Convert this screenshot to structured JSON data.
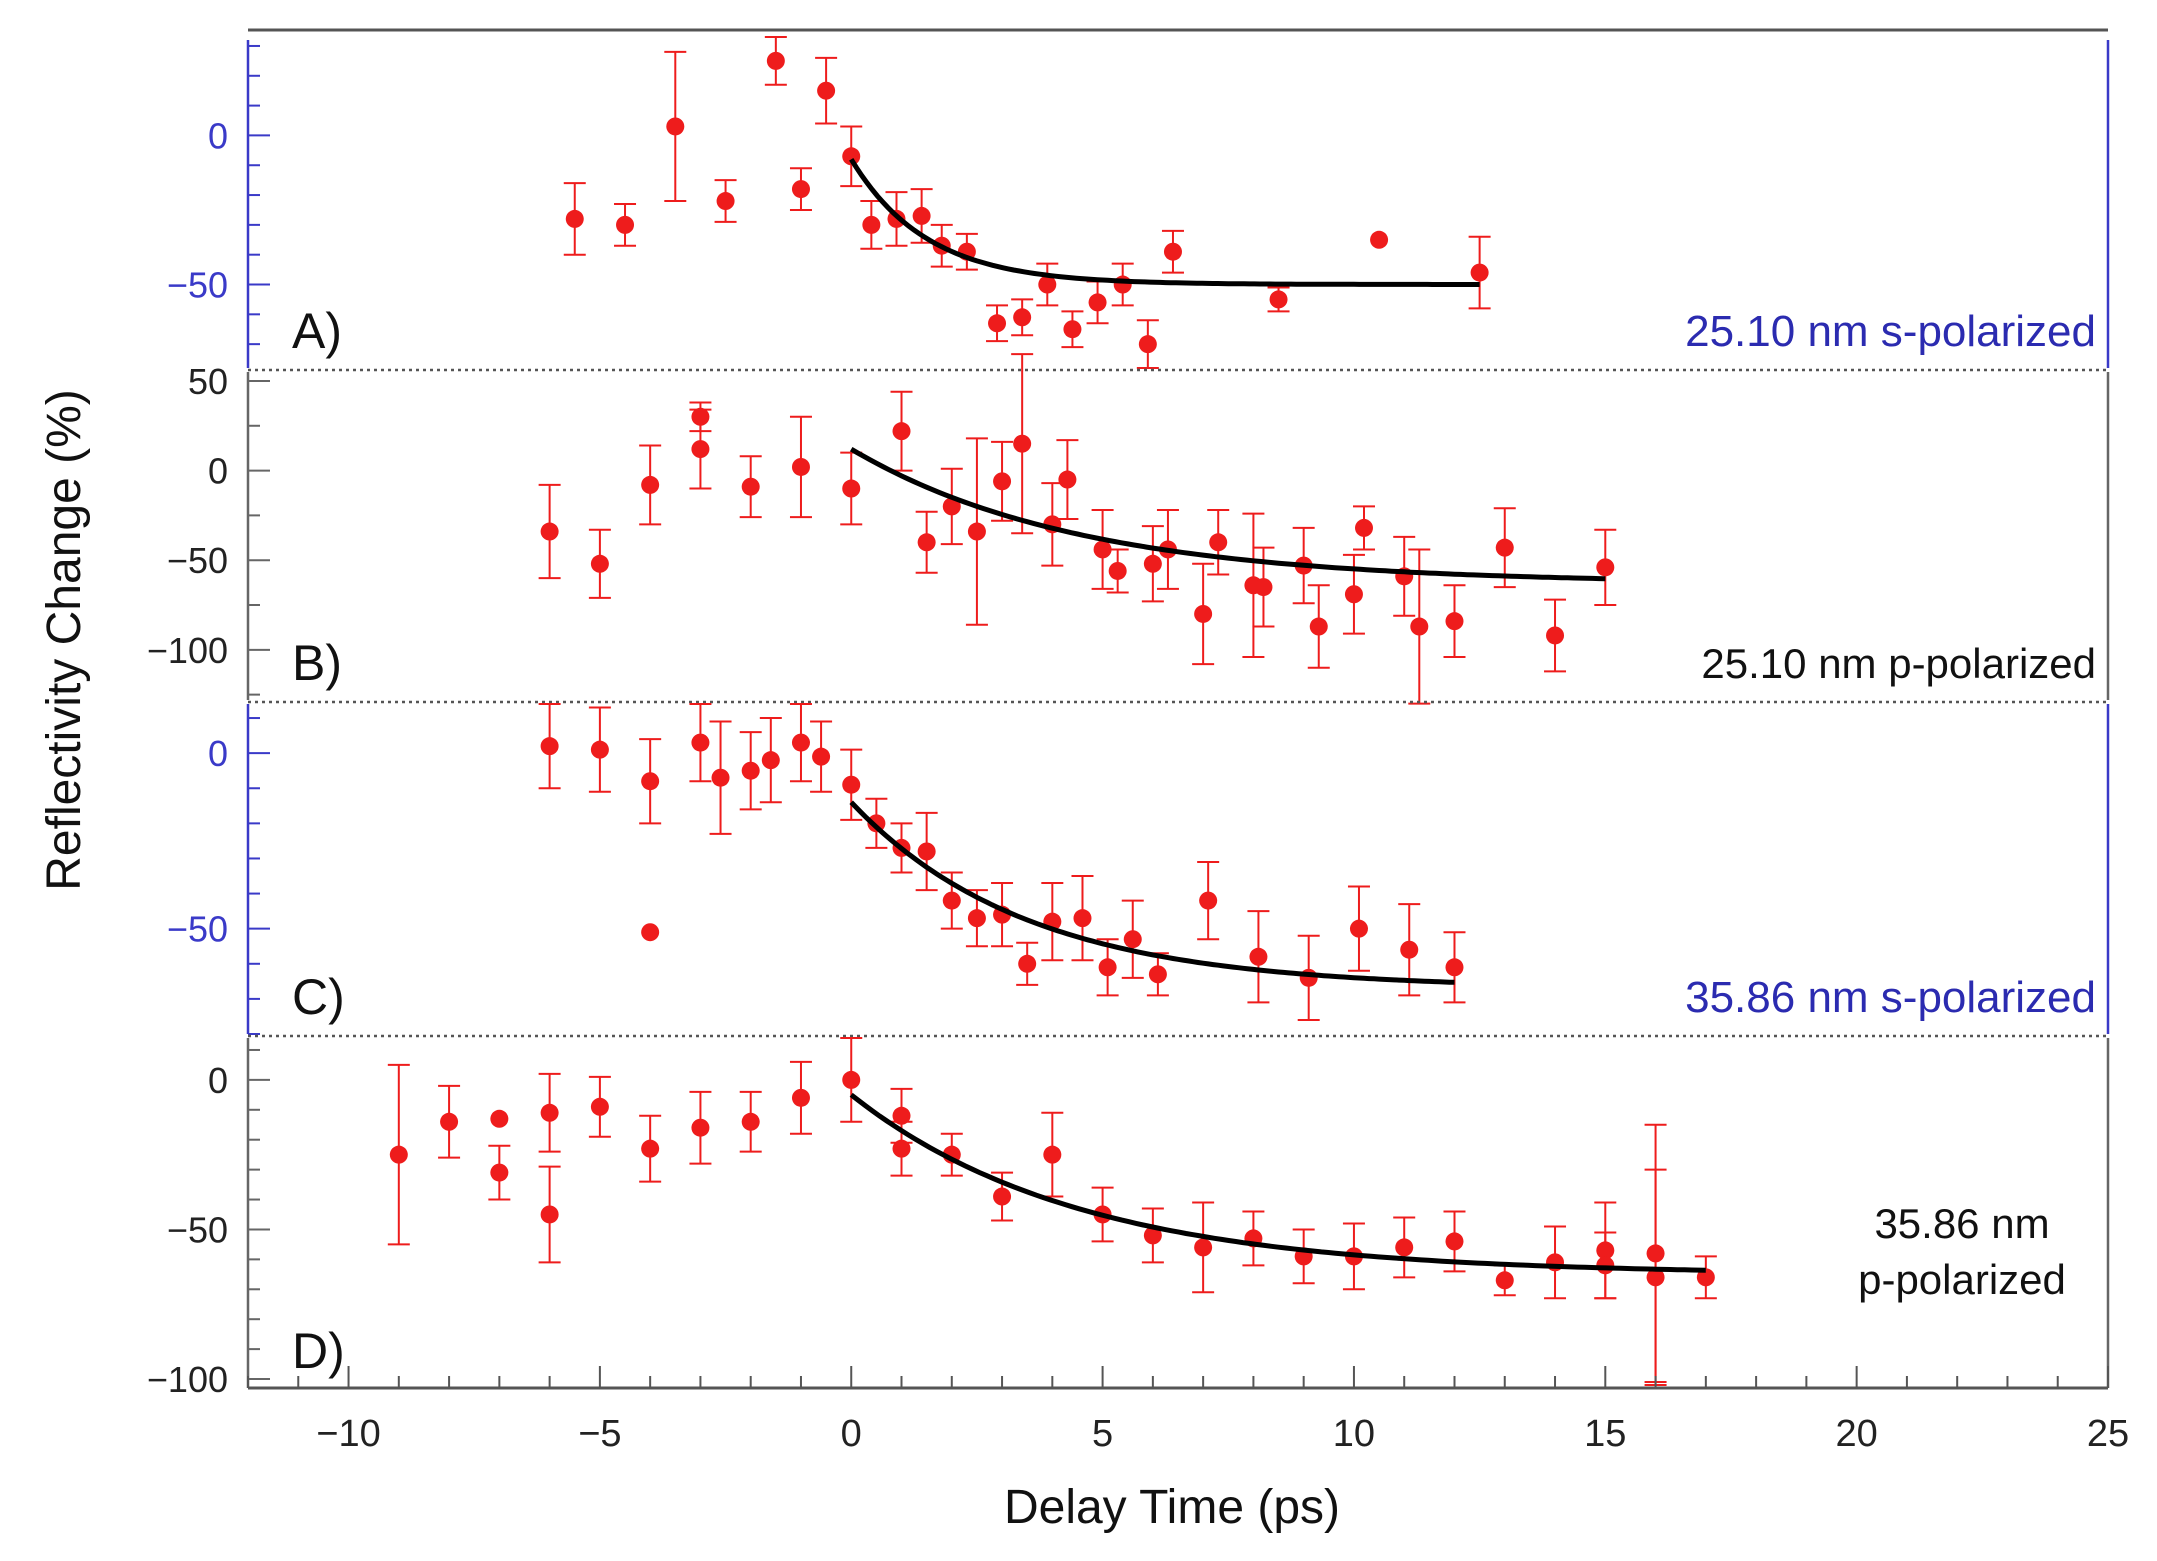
{
  "chart_data": {
    "type": "scatter",
    "xlabel": "Delay Time (ps)",
    "ylabel": "Reflectivity Change (%)",
    "xlim": [
      -12,
      25
    ],
    "x_ticks": [
      -10,
      -5,
      0,
      5,
      10,
      15,
      20,
      25
    ],
    "panels": [
      {
        "letter": "A)",
        "label": [
          "25.10 nm s-polarized"
        ],
        "label_color": "#2b2bb0",
        "axis_color": "#3a3ac8",
        "ylim": [
          -78,
          32
        ],
        "y_ticks": [
          0,
          -50
        ],
        "points": [
          {
            "x": -5.5,
            "y": -28,
            "err": 12
          },
          {
            "x": -4.5,
            "y": -30,
            "err": 7
          },
          {
            "x": -3.5,
            "y": 3,
            "err": 25
          },
          {
            "x": -2.5,
            "y": -22,
            "err": 7
          },
          {
            "x": -1.5,
            "y": 25,
            "err": 8
          },
          {
            "x": -1.0,
            "y": -18,
            "err": 7
          },
          {
            "x": -0.5,
            "y": 15,
            "err": 11
          },
          {
            "x": 0.0,
            "y": -7,
            "err": 10
          },
          {
            "x": 0.4,
            "y": -30,
            "err": 8
          },
          {
            "x": 0.9,
            "y": -28,
            "err": 9
          },
          {
            "x": 1.4,
            "y": -27,
            "err": 9
          },
          {
            "x": 1.8,
            "y": -37,
            "err": 7
          },
          {
            "x": 2.3,
            "y": -39,
            "err": 6
          },
          {
            "x": 2.9,
            "y": -63,
            "err": 6
          },
          {
            "x": 3.4,
            "y": -61,
            "err": 6
          },
          {
            "x": 3.9,
            "y": -50,
            "err": 7
          },
          {
            "x": 4.4,
            "y": -65,
            "err": 6
          },
          {
            "x": 4.9,
            "y": -56,
            "err": 7
          },
          {
            "x": 5.4,
            "y": -50,
            "err": 7
          },
          {
            "x": 5.9,
            "y": -70,
            "err": 8
          },
          {
            "x": 6.4,
            "y": -39,
            "err": 7
          },
          {
            "x": 8.5,
            "y": -55,
            "err": 4
          },
          {
            "x": 10.5,
            "y": -35,
            "err": 0
          },
          {
            "x": 12.5,
            "y": -46,
            "err": 12
          }
        ],
        "fit": {
          "A": -50,
          "B": 42,
          "tau": 1.5,
          "x0": 0,
          "x1": 12.5
        }
      },
      {
        "letter": "B)",
        "label": [
          "25.10 nm p-polarized"
        ],
        "label_color": "#111111",
        "axis_color": "#666666",
        "ylim": [
          -128,
          55
        ],
        "y_ticks": [
          50,
          0,
          -50,
          -100
        ],
        "points": [
          {
            "x": -6.0,
            "y": -34,
            "err": 26
          },
          {
            "x": -5.0,
            "y": -52,
            "err": 19
          },
          {
            "x": -4.0,
            "y": -8,
            "err": 22
          },
          {
            "x": -3.0,
            "y": 30,
            "err": 8
          },
          {
            "x": -3.0,
            "y": 12,
            "err": 22
          },
          {
            "x": -2.0,
            "y": -9,
            "err": 17
          },
          {
            "x": -1.0,
            "y": 2,
            "err": 28
          },
          {
            "x": 0.0,
            "y": -10,
            "err": 20
          },
          {
            "x": 1.0,
            "y": 22,
            "err": 22
          },
          {
            "x": 1.5,
            "y": -40,
            "err": 17
          },
          {
            "x": 2.0,
            "y": -20,
            "err": 21
          },
          {
            "x": 2.5,
            "y": -34,
            "err": 52
          },
          {
            "x": 3.0,
            "y": -6,
            "err": 22
          },
          {
            "x": 3.4,
            "y": 15,
            "err": 50
          },
          {
            "x": 4.0,
            "y": -30,
            "err": 23
          },
          {
            "x": 4.3,
            "y": -5,
            "err": 22
          },
          {
            "x": 5.0,
            "y": -44,
            "err": 22
          },
          {
            "x": 5.3,
            "y": -56,
            "err": 12
          },
          {
            "x": 6.0,
            "y": -52,
            "err": 21
          },
          {
            "x": 6.3,
            "y": -44,
            "err": 22
          },
          {
            "x": 7.0,
            "y": -80,
            "err": 28
          },
          {
            "x": 7.3,
            "y": -40,
            "err": 18
          },
          {
            "x": 8.0,
            "y": -64,
            "err": 40
          },
          {
            "x": 8.2,
            "y": -65,
            "err": 22
          },
          {
            "x": 9.0,
            "y": -53,
            "err": 21
          },
          {
            "x": 9.3,
            "y": -87,
            "err": 23
          },
          {
            "x": 10.0,
            "y": -69,
            "err": 22
          },
          {
            "x": 10.2,
            "y": -32,
            "err": 12
          },
          {
            "x": 11.0,
            "y": -59,
            "err": 22
          },
          {
            "x": 11.3,
            "y": -87,
            "err": 43
          },
          {
            "x": 12.0,
            "y": -84,
            "err": 20
          },
          {
            "x": 13.0,
            "y": -43,
            "err": 22
          },
          {
            "x": 14.0,
            "y": -92,
            "err": 20
          },
          {
            "x": 15.0,
            "y": -54,
            "err": 21
          }
        ],
        "fit": {
          "A": -63,
          "B": 75,
          "tau": 4.5,
          "x0": 0,
          "x1": 15
        }
      },
      {
        "letter": "C)",
        "label": [
          "35.86 nm s-polarized"
        ],
        "label_color": "#2b2bb0",
        "axis_color": "#3a3ac8",
        "ylim": [
          -80,
          14
        ],
        "y_ticks": [
          0,
          -50
        ],
        "points": [
          {
            "x": -6.0,
            "y": 2,
            "err": 12
          },
          {
            "x": -5.0,
            "y": 1,
            "err": 12
          },
          {
            "x": -4.0,
            "y": -8,
            "err": 12
          },
          {
            "x": -4.0,
            "y": -51,
            "err": 0
          },
          {
            "x": -3.0,
            "y": 3,
            "err": 11
          },
          {
            "x": -2.6,
            "y": -7,
            "err": 16
          },
          {
            "x": -2.0,
            "y": -5,
            "err": 11
          },
          {
            "x": -1.6,
            "y": -2,
            "err": 12
          },
          {
            "x": -1.0,
            "y": 3,
            "err": 11
          },
          {
            "x": -0.6,
            "y": -1,
            "err": 10
          },
          {
            "x": 0.0,
            "y": -9,
            "err": 10
          },
          {
            "x": 0.5,
            "y": -20,
            "err": 7
          },
          {
            "x": 1.0,
            "y": -27,
            "err": 7
          },
          {
            "x": 1.5,
            "y": -28,
            "err": 11
          },
          {
            "x": 2.0,
            "y": -42,
            "err": 8
          },
          {
            "x": 2.5,
            "y": -47,
            "err": 8
          },
          {
            "x": 3.0,
            "y": -46,
            "err": 9
          },
          {
            "x": 3.5,
            "y": -60,
            "err": 6
          },
          {
            "x": 4.0,
            "y": -48,
            "err": 11
          },
          {
            "x": 4.6,
            "y": -47,
            "err": 12
          },
          {
            "x": 5.1,
            "y": -61,
            "err": 8
          },
          {
            "x": 5.6,
            "y": -53,
            "err": 11
          },
          {
            "x": 6.1,
            "y": -63,
            "err": 6
          },
          {
            "x": 7.1,
            "y": -42,
            "err": 11
          },
          {
            "x": 8.1,
            "y": -58,
            "err": 13
          },
          {
            "x": 9.1,
            "y": -64,
            "err": 12
          },
          {
            "x": 10.1,
            "y": -50,
            "err": 12
          },
          {
            "x": 11.1,
            "y": -56,
            "err": 13
          },
          {
            "x": 12.0,
            "y": -61,
            "err": 10
          }
        ],
        "fit": {
          "A": -67,
          "B": 53,
          "tau": 3.5,
          "x0": 0,
          "x1": 12
        }
      },
      {
        "letter": "D)",
        "label": [
          "35.86 nm",
          "p-polarized"
        ],
        "label_color": "#111111",
        "axis_color": "#666666",
        "ylim": [
          -103,
          14
        ],
        "y_ticks": [
          0,
          -50,
          -100
        ],
        "points": [
          {
            "x": -9.0,
            "y": -25,
            "err": 30
          },
          {
            "x": -8.0,
            "y": -14,
            "err": 12
          },
          {
            "x": -7.0,
            "y": -13,
            "err": 0
          },
          {
            "x": -7.0,
            "y": -31,
            "err": 9
          },
          {
            "x": -6.0,
            "y": -11,
            "err": 13
          },
          {
            "x": -6.0,
            "y": -45,
            "err": 16
          },
          {
            "x": -5.0,
            "y": -9,
            "err": 10
          },
          {
            "x": -4.0,
            "y": -23,
            "err": 11
          },
          {
            "x": -3.0,
            "y": -16,
            "err": 12
          },
          {
            "x": -2.0,
            "y": -14,
            "err": 10
          },
          {
            "x": -1.0,
            "y": -6,
            "err": 12
          },
          {
            "x": 0.0,
            "y": 0,
            "err": 14
          },
          {
            "x": 1.0,
            "y": -12,
            "err": 9
          },
          {
            "x": 1.0,
            "y": -23,
            "err": 9
          },
          {
            "x": 2.0,
            "y": -25,
            "err": 7
          },
          {
            "x": 3.0,
            "y": -39,
            "err": 8
          },
          {
            "x": 4.0,
            "y": -25,
            "err": 14
          },
          {
            "x": 5.0,
            "y": -45,
            "err": 9
          },
          {
            "x": 6.0,
            "y": -52,
            "err": 9
          },
          {
            "x": 7.0,
            "y": -56,
            "err": 15
          },
          {
            "x": 8.0,
            "y": -53,
            "err": 9
          },
          {
            "x": 9.0,
            "y": -59,
            "err": 9
          },
          {
            "x": 10.0,
            "y": -59,
            "err": 11
          },
          {
            "x": 11.0,
            "y": -56,
            "err": 10
          },
          {
            "x": 12.0,
            "y": -54,
            "err": 10
          },
          {
            "x": 13.0,
            "y": -67,
            "err": 5
          },
          {
            "x": 14.0,
            "y": -61,
            "err": 12
          },
          {
            "x": 15.0,
            "y": -57,
            "err": 16
          },
          {
            "x": 15.0,
            "y": -62,
            "err": 11
          },
          {
            "x": 16.0,
            "y": -58,
            "err": 43
          },
          {
            "x": 16.0,
            "y": -66,
            "err": 36
          },
          {
            "x": 17.0,
            "y": -66,
            "err": 7
          }
        ],
        "fit": {
          "A": -65,
          "B": 60,
          "tau": 4.5,
          "x0": 0,
          "x1": 17
        }
      }
    ]
  }
}
